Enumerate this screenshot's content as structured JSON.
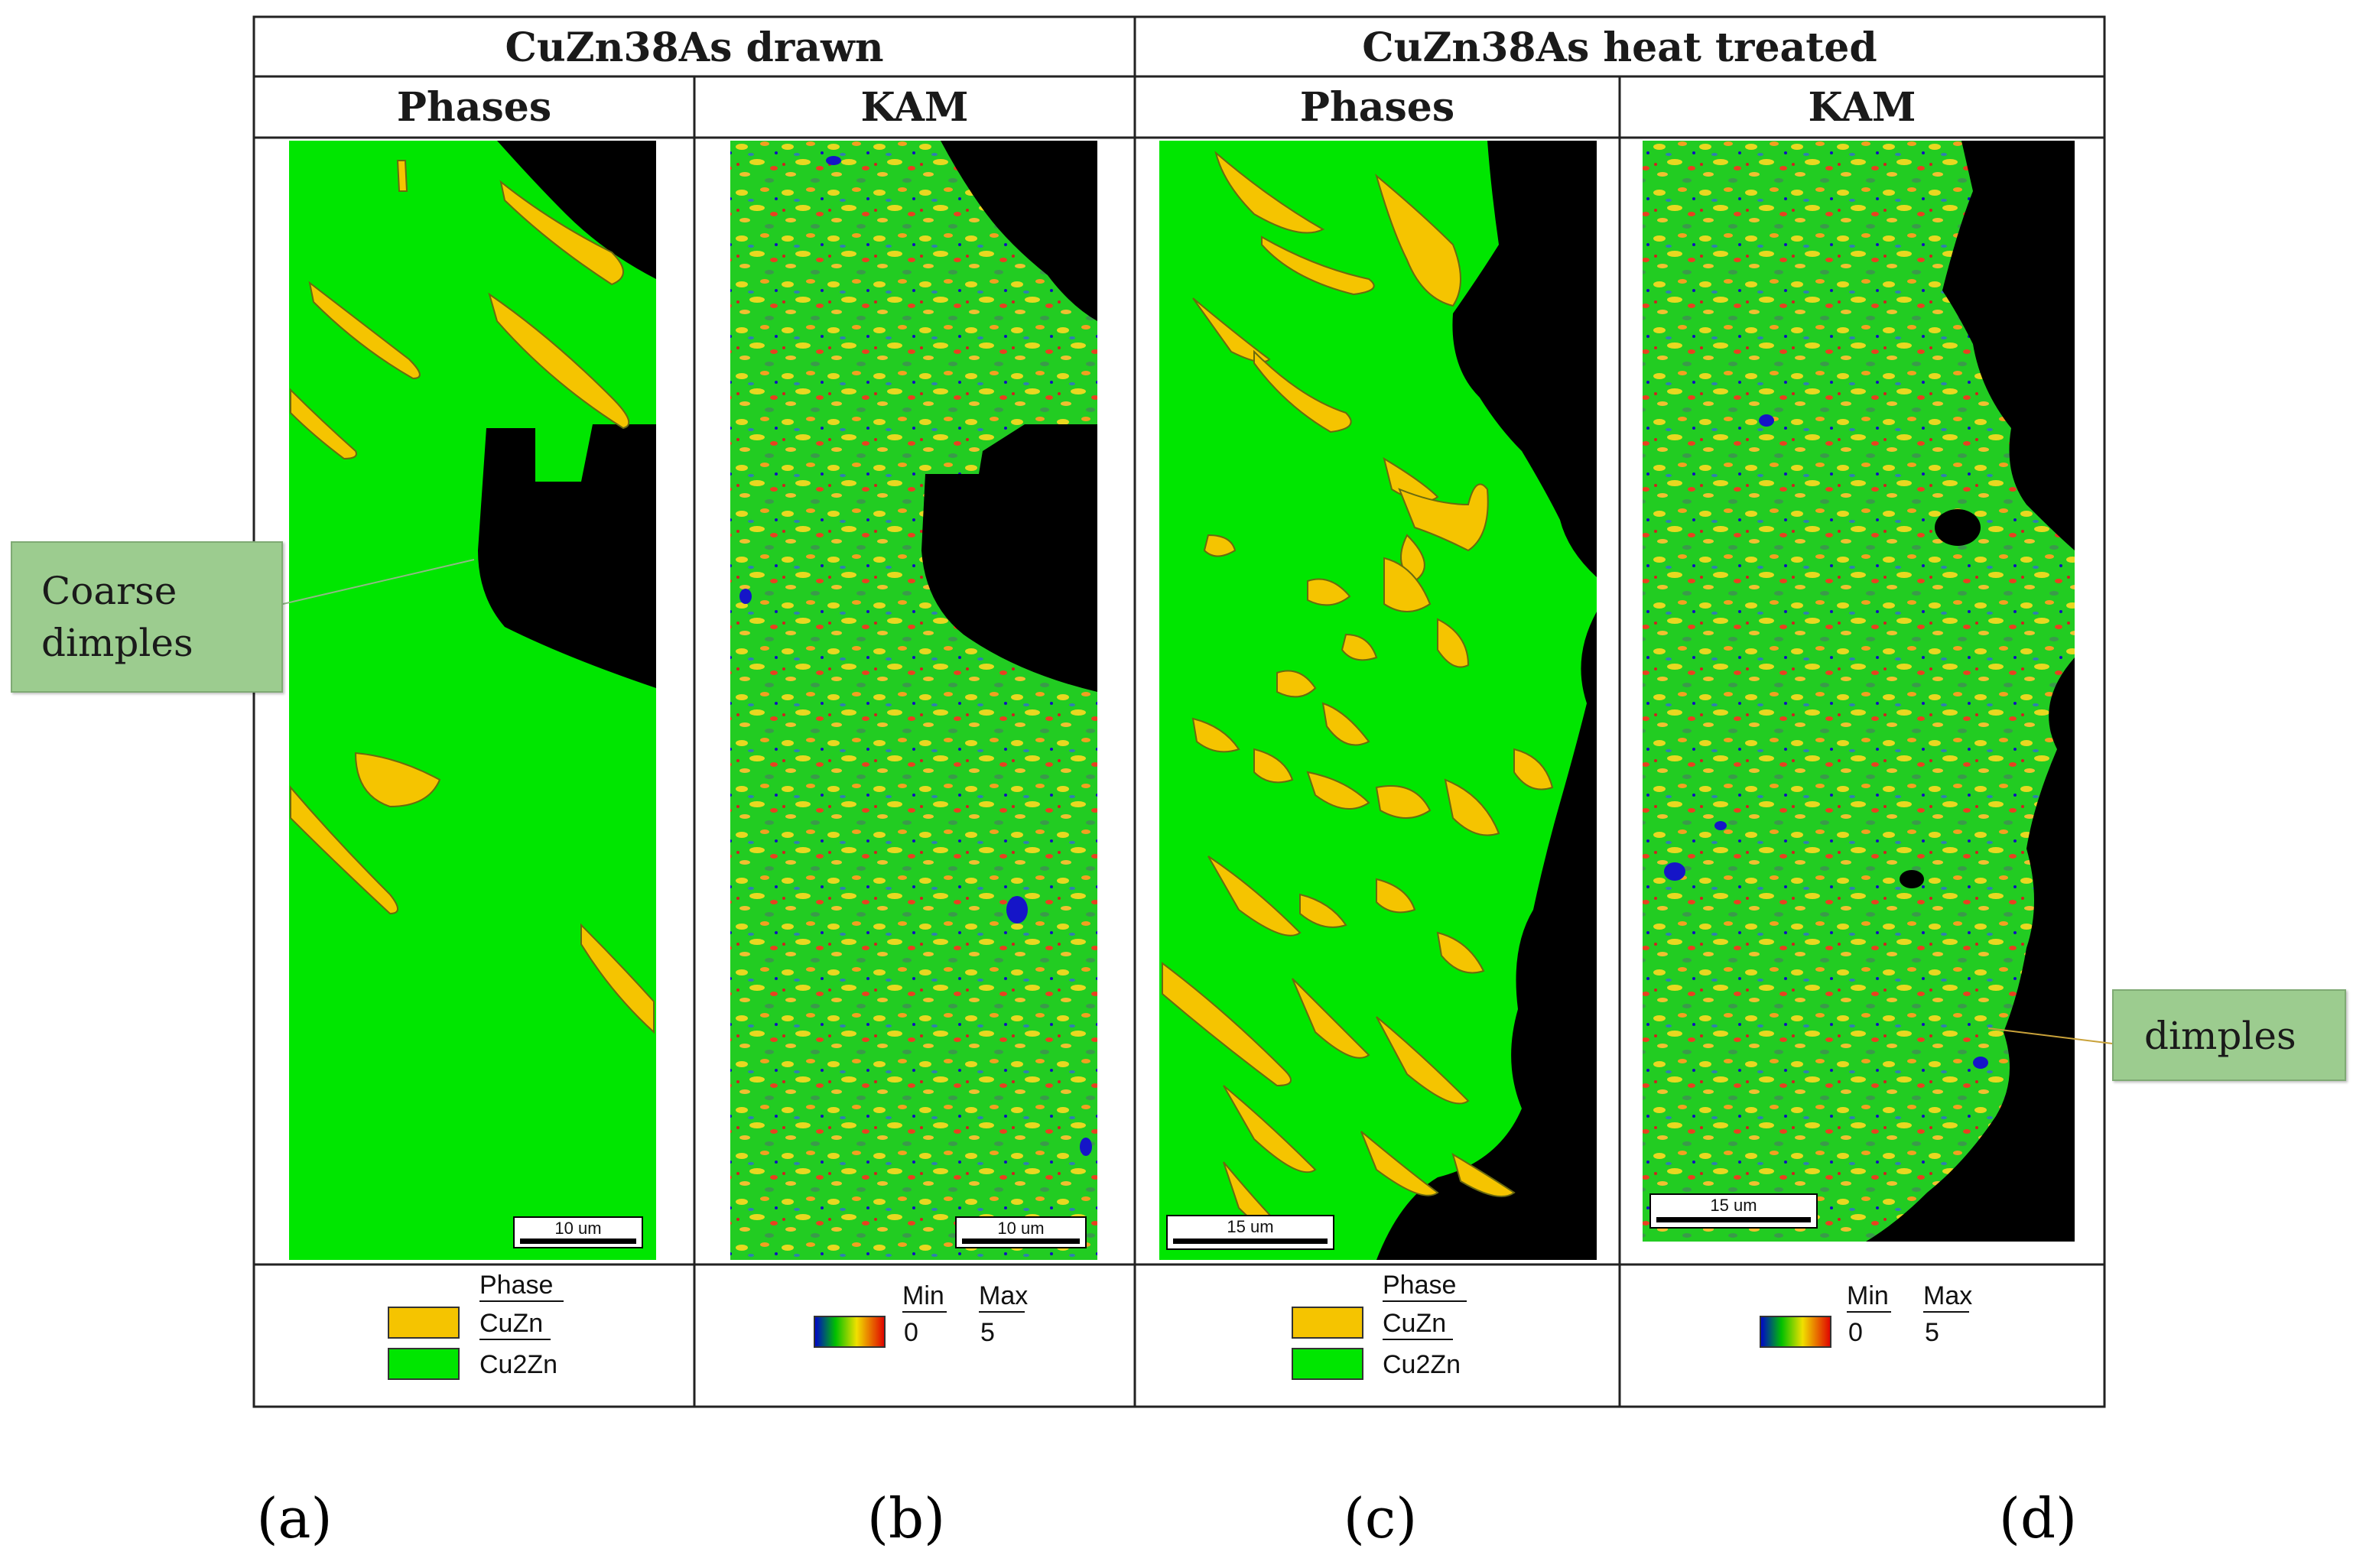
{
  "groups": {
    "drawn": "CuZn38As drawn",
    "heat_treated": "CuZn38As heat treated"
  },
  "columns": {
    "a": "Phases",
    "b": "KAM",
    "c": "Phases",
    "d": "KAM"
  },
  "scale_bars": {
    "a": "10 um",
    "b": "10 um",
    "c": "15 um",
    "d": "15 um"
  },
  "legends": {
    "phase": {
      "title": "Phase",
      "items": [
        {
          "label": "CuZn",
          "color": "#f5c400"
        },
        {
          "label": "Cu2Zn",
          "color": "#00e600"
        }
      ]
    },
    "kam": {
      "min_label": "Min",
      "max_label": "Max",
      "min_value": "0",
      "max_value": "5"
    }
  },
  "callouts": {
    "coarse": "Coarse dimples",
    "fine": "dimples"
  },
  "panel_labels": [
    "(a)",
    "(b)",
    "(c)",
    "(d)"
  ],
  "colors": {
    "cu2zn": "#00e600",
    "cuzn": "#f5c400",
    "void": "#000000",
    "callout_fill": "#9ccc8f"
  }
}
